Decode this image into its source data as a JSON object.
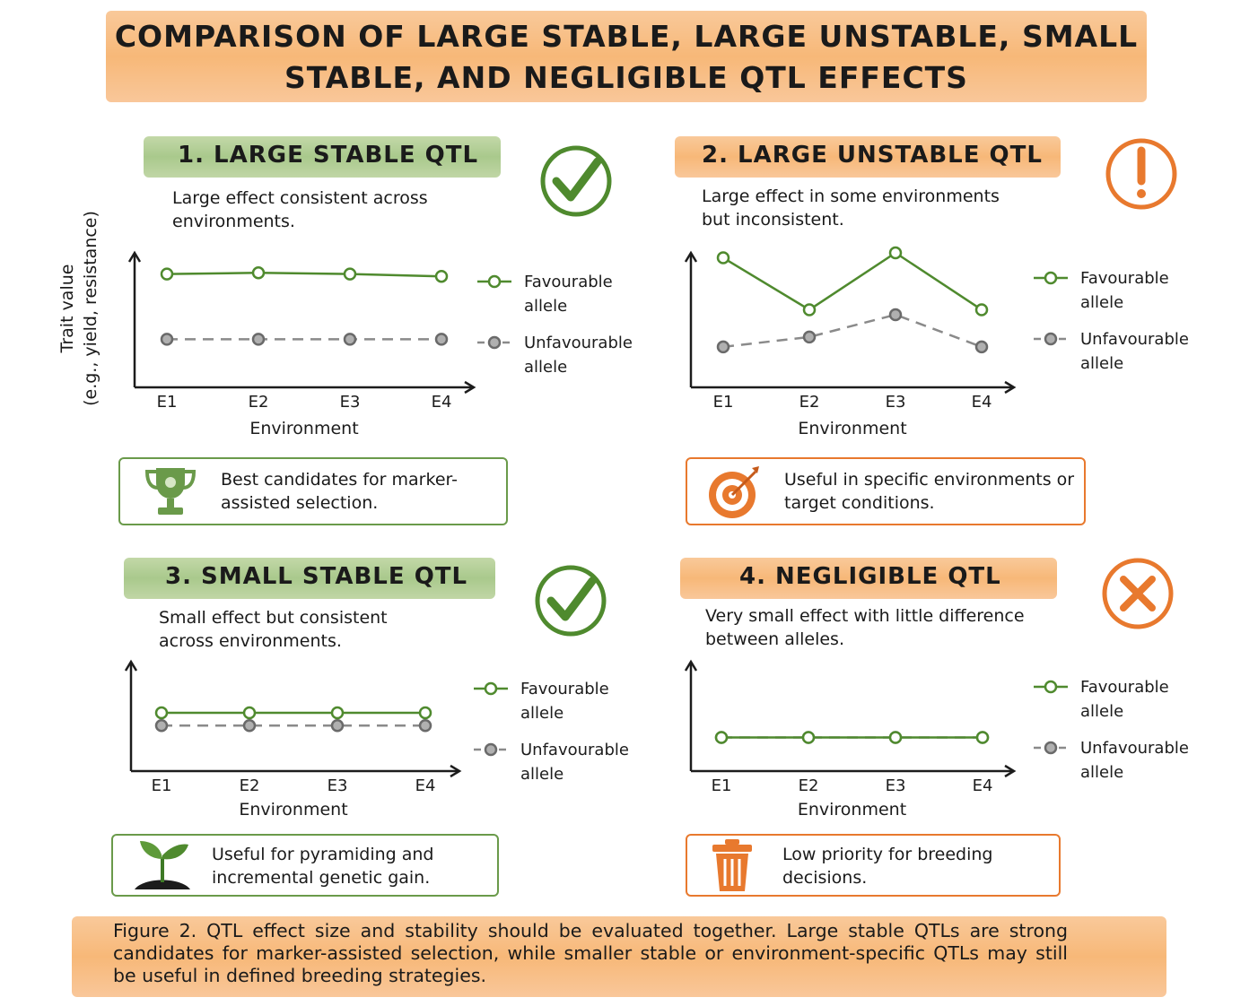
{
  "title": "COMPARISON OF LARGE STABLE, LARGE UNSTABLE, SMALL STABLE, AND NEGLIGIBLE QTL EFFECTS",
  "y_axis_label": {
    "line1": "Trait value",
    "line2": "(e.g., yield, resistance)"
  },
  "colors": {
    "green": "#4f8a2e",
    "orange": "#e8792e",
    "gray": "#8a8a8a"
  },
  "panels": [
    {
      "heading": "1. LARGE STABLE QTL",
      "description": "Large effect consistent across environments.",
      "status_icon": "check-circle-icon",
      "note": "Best candidates for marker-assisted selection.",
      "note_icon": "trophy-icon"
    },
    {
      "heading": "2. LARGE UNSTABLE QTL",
      "description": "Large effect in some environments but inconsistent.",
      "status_icon": "exclamation-circle-icon",
      "note": "Useful in specific environments or target conditions.",
      "note_icon": "target-icon"
    },
    {
      "heading": "3. SMALL STABLE QTL",
      "description": "Small effect but consistent across environments.",
      "status_icon": "check-circle-icon",
      "note": "Useful for pyramiding and incremental genetic gain.",
      "note_icon": "seedling-icon"
    },
    {
      "heading": "4. NEGLIGIBLE QTL",
      "description": "Very small effect with little difference between alleles.",
      "status_icon": "x-circle-icon",
      "note": "Low priority for breeding decisions.",
      "note_icon": "trash-icon"
    }
  ],
  "chart_data": [
    {
      "type": "line",
      "x": [
        "E1",
        "E2",
        "E3",
        "E4"
      ],
      "xlabel": "Environment",
      "ylim": [
        0,
        10
      ],
      "series": [
        {
          "name": "Favourable allele",
          "values": [
            8.8,
            8.9,
            8.8,
            8.6
          ]
        },
        {
          "name": "Unfavourable allele",
          "values": [
            3.2,
            3.2,
            3.2,
            3.2
          ]
        }
      ]
    },
    {
      "type": "line",
      "x": [
        "E1",
        "E2",
        "E3",
        "E4"
      ],
      "xlabel": "Environment",
      "ylim": [
        0,
        10
      ],
      "series": [
        {
          "name": "Favourable allele",
          "values": [
            9.6,
            5.4,
            10.0,
            5.4
          ]
        },
        {
          "name": "Unfavourable allele",
          "values": [
            2.4,
            3.2,
            5.0,
            2.4
          ]
        }
      ]
    },
    {
      "type": "line",
      "x": [
        "E1",
        "E2",
        "E3",
        "E4"
      ],
      "xlabel": "Environment",
      "ylim": [
        0,
        10
      ],
      "series": [
        {
          "name": "Favourable allele",
          "values": [
            5.0,
            5.0,
            5.0,
            5.0
          ]
        },
        {
          "name": "Unfavourable allele",
          "values": [
            3.7,
            3.7,
            3.7,
            3.7
          ]
        }
      ]
    },
    {
      "type": "line",
      "x": [
        "E1",
        "E2",
        "E3",
        "E4"
      ],
      "xlabel": "Environment",
      "ylim": [
        0,
        10
      ],
      "series": [
        {
          "name": "Favourable allele",
          "values": [
            2.5,
            2.5,
            2.5,
            2.5
          ]
        },
        {
          "name": "Unfavourable allele",
          "values": [
            2.5,
            2.5,
            2.5,
            2.5
          ]
        }
      ]
    }
  ],
  "legend": {
    "favourable_line1": "Favourable",
    "unfavourable_line1": "Unfavourable",
    "line2": "allele"
  },
  "caption": "Figure 2. QTL effect size and stability should be evaluated together. Large stable QTLs are strong candidates for marker-assisted selection, while smaller stable or environment-specific QTLs may still be useful in defined breeding strategies."
}
